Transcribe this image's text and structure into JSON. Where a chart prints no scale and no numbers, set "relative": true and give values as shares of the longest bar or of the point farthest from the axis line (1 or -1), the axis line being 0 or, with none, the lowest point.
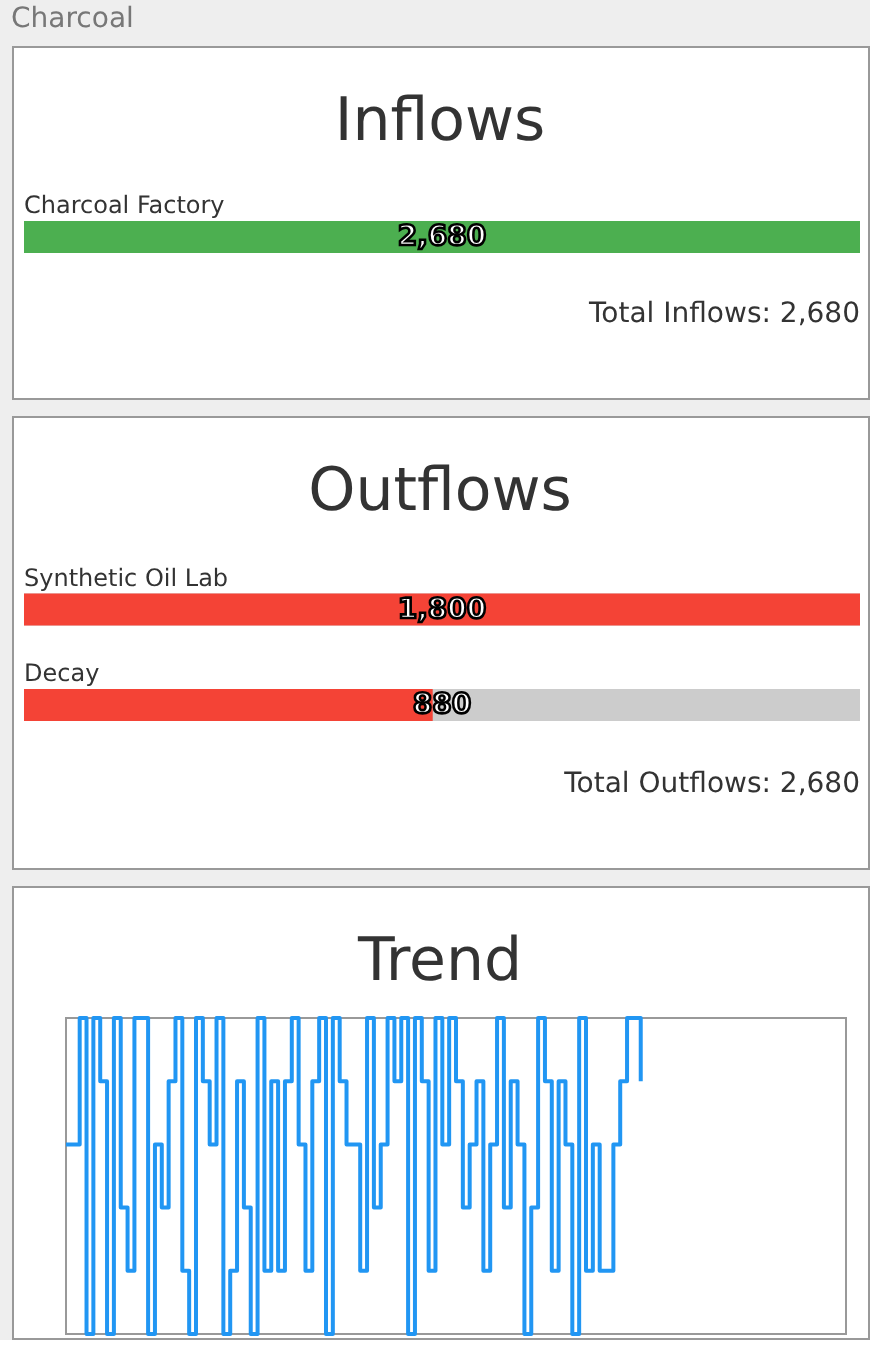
{
  "chart_data": [
    {
      "type": "bar",
      "orientation": "horizontal",
      "title": "Inflows",
      "subtitle": "Charcoal",
      "categories": [
        "Charcoal Factory"
      ],
      "values": [
        2680
      ],
      "value_labels": [
        "2,680"
      ],
      "color": "#4caf50",
      "annotations": [
        "Total Inflows: 2,680"
      ]
    },
    {
      "type": "bar",
      "orientation": "horizontal",
      "title": "Outflows",
      "categories": [
        "Synthetic Oil Lab",
        "Decay"
      ],
      "values": [
        1800,
        880
      ],
      "value_labels": [
        "1,800",
        "880"
      ],
      "color": "#f44336",
      "annotations": [
        "Total Outflows: 2,680"
      ]
    },
    {
      "type": "step",
      "title": "Trend",
      "relative": true,
      "color": "#2196f3",
      "categories": [
        null,
        null,
        null,
        null,
        null,
        null,
        null,
        null,
        null,
        null,
        null,
        null,
        null,
        null,
        null,
        null,
        null,
        null,
        null,
        null,
        null,
        null,
        null,
        null,
        null,
        null,
        null,
        null,
        null,
        null,
        null,
        null,
        null,
        null,
        null,
        null,
        null,
        null,
        null,
        null,
        null,
        null,
        null,
        null,
        null,
        null,
        null,
        null,
        null,
        null,
        null,
        null,
        null,
        null,
        null,
        null,
        null,
        null,
        null,
        null,
        null,
        null,
        null,
        null,
        null,
        null,
        null,
        null,
        null,
        null,
        null,
        null,
        null,
        null,
        null,
        null,
        null,
        null,
        null,
        null,
        null,
        null,
        null,
        null,
        null,
        null,
        null,
        null,
        null,
        null,
        null,
        null,
        null,
        null,
        null,
        null,
        null,
        null,
        null,
        null,
        null,
        null,
        null,
        null,
        null,
        null,
        null,
        null,
        null,
        null,
        null,
        null,
        null,
        null,
        null
      ],
      "values": [
        0.6,
        0.6,
        1,
        0,
        1,
        0.8,
        0,
        1,
        0.4,
        0.2,
        1,
        1,
        0,
        0.6,
        0.4,
        0.8,
        1,
        0.2,
        0,
        1,
        0.8,
        0.6,
        1,
        0,
        0.2,
        0.8,
        0.4,
        0,
        1,
        0.2,
        0.8,
        0.2,
        0.8,
        1,
        0.6,
        0.2,
        0.8,
        1,
        0,
        1,
        0.8,
        0.6,
        0.6,
        0.2,
        1,
        0.4,
        0.6,
        1,
        0.8,
        1,
        0,
        1,
        0.8,
        0.2,
        1,
        0.6,
        1,
        0.8,
        0.4,
        0.6,
        0.8,
        0.2,
        0.6,
        1,
        0.4,
        0.8,
        0.6,
        0,
        0.4,
        1,
        0.8,
        0.2,
        0.8,
        0.6,
        0,
        1,
        0.2,
        0.6,
        0.2,
        0.2,
        0.6,
        0.8,
        1,
        1,
        0.8,
        null,
        null,
        null,
        null,
        null,
        null,
        null,
        null,
        null,
        null,
        null,
        null,
        null,
        null,
        null,
        null,
        null,
        null,
        null,
        null,
        null,
        null,
        null,
        null,
        null,
        null,
        null,
        null,
        null,
        null
      ]
    }
  ]
}
